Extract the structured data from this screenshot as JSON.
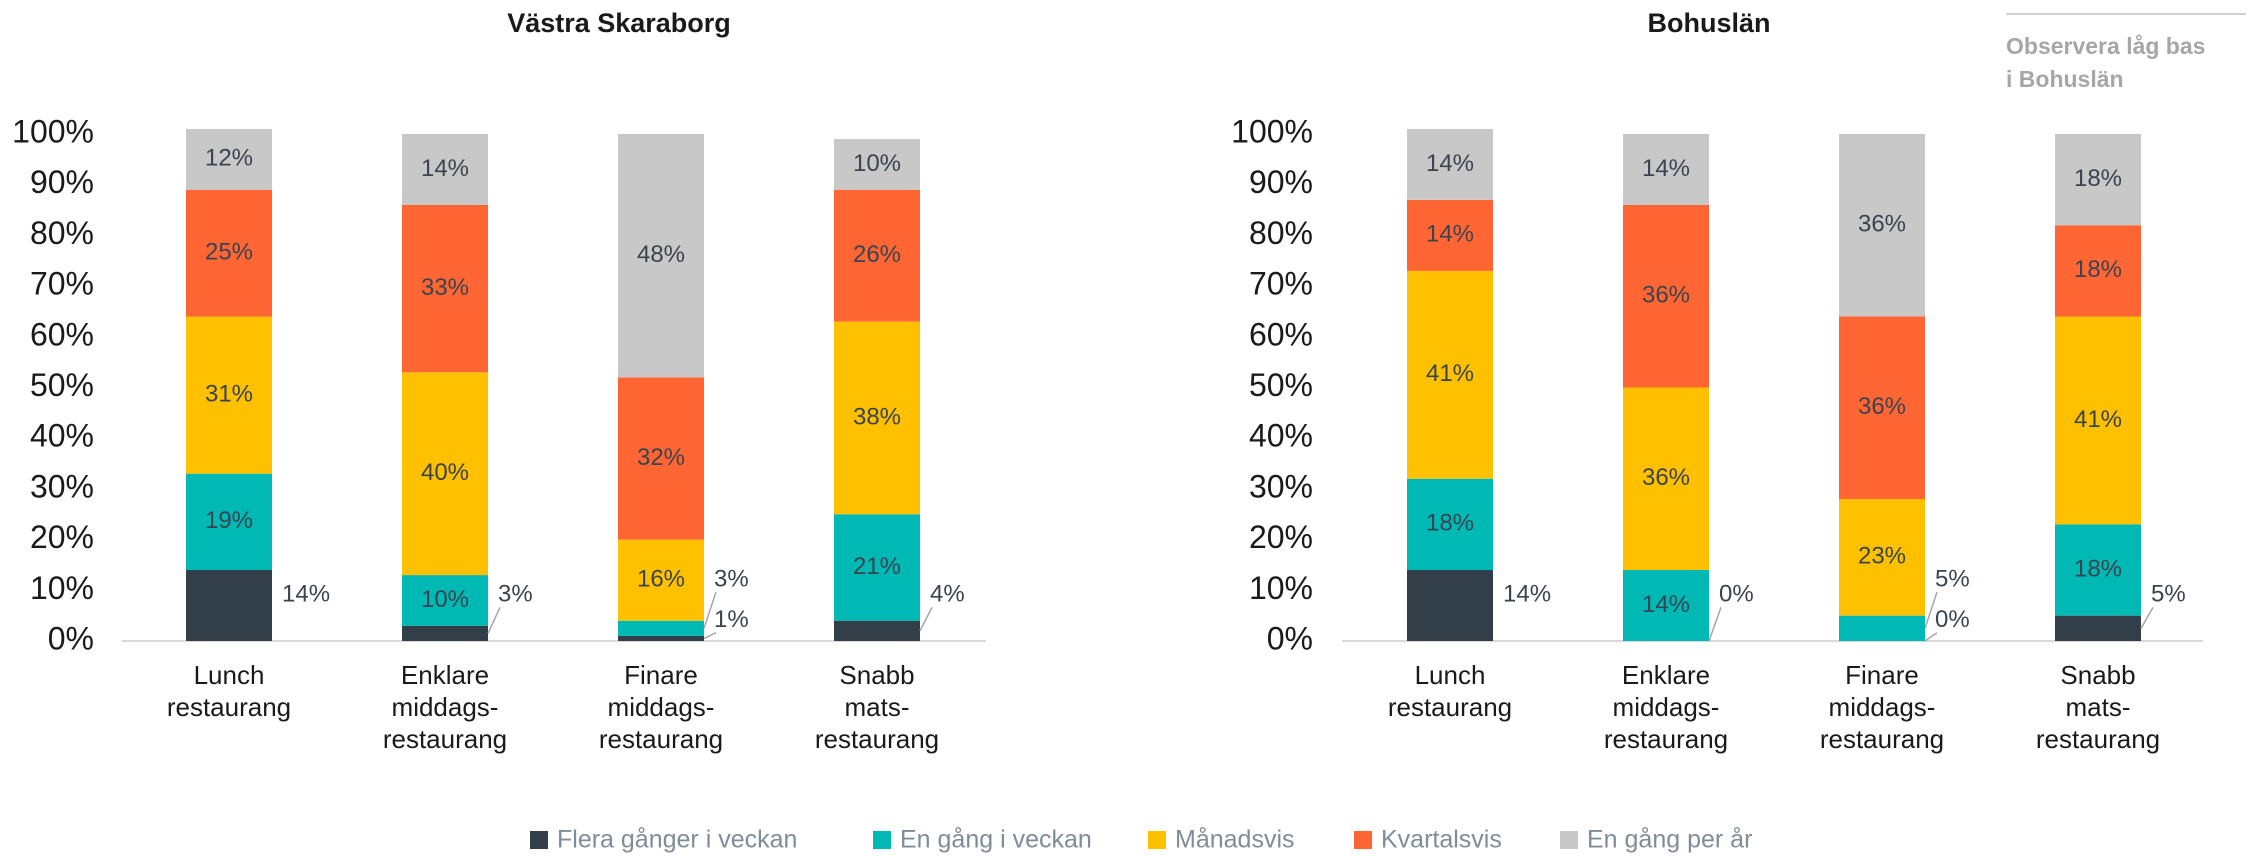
{
  "note": [
    "Observera låg bas",
    "i Bohuslän"
  ],
  "chart_data": [
    {
      "type": "stacked_bar",
      "title": "Västra Skaraborg",
      "categories": [
        [
          "Lunch",
          "restaurang"
        ],
        [
          "Enklare",
          "middags-",
          "restaurang"
        ],
        [
          "Finare",
          "middags-",
          "restaurang"
        ],
        [
          "Snabb",
          "mats-",
          "restaurang"
        ]
      ],
      "ylim": [
        0,
        100
      ],
      "yticks": [
        {
          "value": 0,
          "label": "0%"
        },
        {
          "value": 10,
          "label": "10%"
        },
        {
          "value": 20,
          "label": "20%"
        },
        {
          "value": 30,
          "label": "30%"
        },
        {
          "value": 40,
          "label": "40%"
        },
        {
          "value": 50,
          "label": "50%"
        },
        {
          "value": 60,
          "label": "60%"
        },
        {
          "value": 70,
          "label": "70%"
        },
        {
          "value": 80,
          "label": "80%"
        },
        {
          "value": 90,
          "label": "90%"
        },
        {
          "value": 100,
          "label": "100%"
        }
      ],
      "series": [
        {
          "name": "Flera gånger i veckan",
          "color": "#333f48",
          "values": [
            14,
            3,
            1,
            4
          ],
          "value_labels": [
            "14%",
            "3%",
            "1%",
            "4%"
          ]
        },
        {
          "name": "En gång i veckan",
          "color": "#00b8b4",
          "values": [
            19,
            10,
            3,
            21
          ],
          "value_labels": [
            "19%",
            "10%",
            "3%",
            "21%"
          ]
        },
        {
          "name": "Månadsvis",
          "color": "#ffc000",
          "values": [
            31,
            40,
            16,
            38
          ],
          "value_labels": [
            "31%",
            "40%",
            "16%",
            "38%"
          ]
        },
        {
          "name": "Kvartalsvis",
          "color": "#ff6633",
          "values": [
            25,
            33,
            32,
            26
          ],
          "value_labels": [
            "25%",
            "33%",
            "32%",
            "26%"
          ]
        },
        {
          "name": "En gång per år",
          "color": "#c8c8c8",
          "values": [
            12,
            14,
            48,
            10
          ],
          "value_labels": [
            "12%",
            "14%",
            "48%",
            "10%"
          ]
        }
      ]
    },
    {
      "type": "stacked_bar",
      "title": "Bohuslän",
      "categories": [
        [
          "Lunch",
          "restaurang"
        ],
        [
          "Enklare",
          "middags-",
          "restaurang"
        ],
        [
          "Finare",
          "middags-",
          "restaurang"
        ],
        [
          "Snabb",
          "mats-",
          "restaurang"
        ]
      ],
      "ylim": [
        0,
        100
      ],
      "yticks": [
        {
          "value": 0,
          "label": "0%"
        },
        {
          "value": 10,
          "label": "10%"
        },
        {
          "value": 20,
          "label": "20%"
        },
        {
          "value": 30,
          "label": "30%"
        },
        {
          "value": 40,
          "label": "40%"
        },
        {
          "value": 50,
          "label": "50%"
        },
        {
          "value": 60,
          "label": "60%"
        },
        {
          "value": 70,
          "label": "70%"
        },
        {
          "value": 80,
          "label": "80%"
        },
        {
          "value": 90,
          "label": "90%"
        },
        {
          "value": 100,
          "label": "100%"
        }
      ],
      "series": [
        {
          "color": "#333f48",
          "values": [
            14,
            0,
            0,
            5
          ],
          "value_labels": [
            "14%",
            "0%",
            "0%",
            "5%"
          ]
        },
        {
          "color": "#00b8b4",
          "values": [
            18,
            14,
            5,
            18
          ],
          "value_labels": [
            "18%",
            "14%",
            "5%",
            "18%"
          ]
        },
        {
          "color": "#ffc000",
          "values": [
            41,
            36,
            23,
            41
          ],
          "value_labels": [
            "41%",
            "36%",
            "23%",
            "41%"
          ]
        },
        {
          "color": "#ff6633",
          "values": [
            14,
            36,
            36,
            18
          ],
          "value_labels": [
            "14%",
            "36%",
            "36%",
            "18%"
          ]
        },
        {
          "color": "#c8c8c8",
          "values": [
            14,
            14,
            36,
            18
          ],
          "value_labels": [
            "14%",
            "14%",
            "36%",
            "18%"
          ]
        }
      ]
    }
  ]
}
